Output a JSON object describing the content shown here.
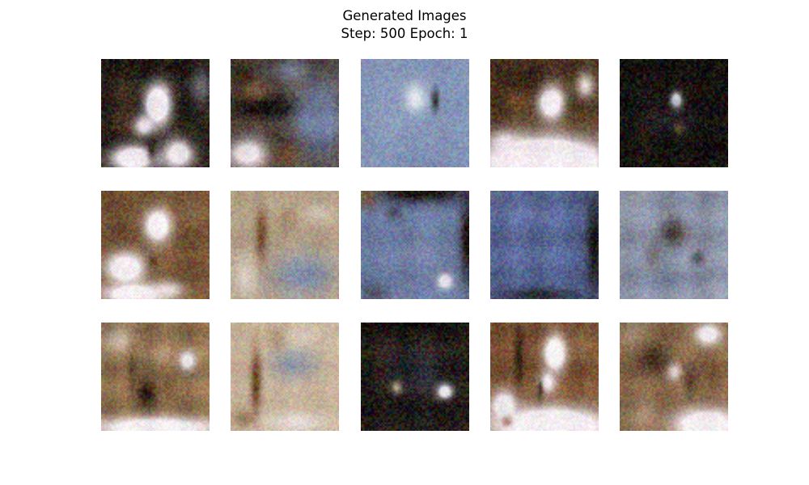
{
  "figure": {
    "title": "Generated Images",
    "step_label": "Step:",
    "step": 500,
    "epoch_label": "Epoch:",
    "epoch": 1
  }
}
